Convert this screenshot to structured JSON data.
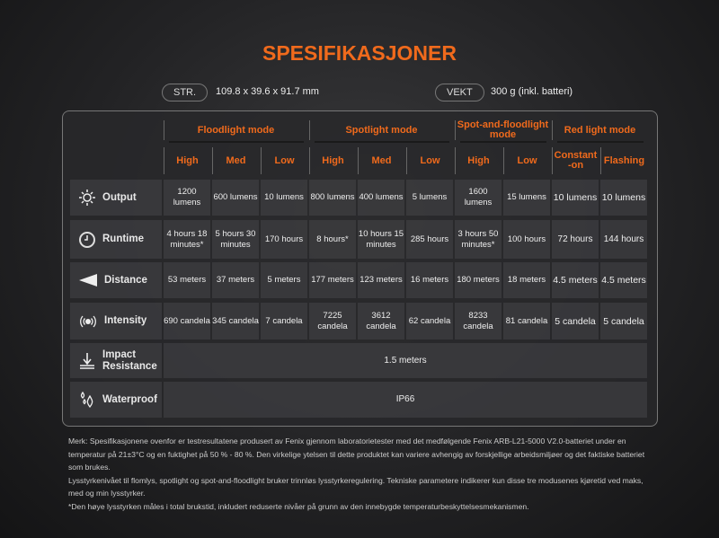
{
  "title": "SPESIFIKASJONER",
  "size": {
    "label": "STR.",
    "value": "109.8 x 39.6 x 91.7 mm"
  },
  "weight": {
    "label": "VEKT",
    "value": "300 g (inkl. batteri)"
  },
  "modes": [
    {
      "label": "Floodlight mode",
      "span": 3
    },
    {
      "label": "Spotlight mode",
      "span": 3
    },
    {
      "label": "Spot-and-floodlight mode",
      "span": 2
    },
    {
      "label": "Red light mode",
      "span": 2
    }
  ],
  "levels": [
    "High",
    "Med",
    "Low",
    "High",
    "Med",
    "Low",
    "High",
    "Low",
    "Constant -on",
    "Flashing"
  ],
  "rows": [
    {
      "label": "Output",
      "icon": "sun-icon",
      "values": [
        "1200 lumens",
        "600 lumens",
        "10 lumens",
        "800 lumens",
        "400 lumens",
        "5 lumens",
        "1600 lumens",
        "15 lumens",
        "10 lumens",
        "10 lumens"
      ]
    },
    {
      "label": "Runtime",
      "icon": "clock-icon",
      "values": [
        "4 hours 18 minutes*",
        "5 hours 30 minutes",
        "170 hours",
        "8 hours*",
        "10 hours 15 minutes",
        "285 hours",
        "3 hours 50 minutes*",
        "100 hours",
        "72 hours",
        "144 hours"
      ]
    },
    {
      "label": "Distance",
      "icon": "beam-icon",
      "values": [
        "53 meters",
        "37 meters",
        "5 meters",
        "177 meters",
        "123 meters",
        "16 meters",
        "180 meters",
        "18 meters",
        "4.5 meters",
        "4.5 meters"
      ]
    },
    {
      "label": "Intensity",
      "icon": "intensity-icon",
      "values": [
        "690 candela",
        "345 candela",
        "7 candela",
        "7225 candela",
        "3612 candela",
        "62 candela",
        "8233 candela",
        "81 candela",
        "5 candela",
        "5 candela"
      ]
    },
    {
      "label": "Impact Resistance",
      "icon": "impact-icon",
      "value": "1.5 meters"
    },
    {
      "label": "Waterproof",
      "icon": "water-drops-icon",
      "value": "IP66"
    }
  ],
  "notes": [
    "Merk: Spesifikasjonene ovenfor er testresultatene produsert av Fenix gjennom laboratorietester med det medfølgende Fenix ARB-L21-5000 V2.0-batteriet under en temperatur på 21±3°C og en fuktighet på 50 % - 80 %. Den virkelige ytelsen til dette produktet kan variere avhengig av forskjellige arbeidsmiljøer og det faktiske batteriet som brukes.",
    "Lysstyrkenivået til flomlys, spotlight og spot-and-floodlight bruker trinnløs lysstyrkeregulering. Tekniske parametere indikerer kun disse tre modusenes kjøretid ved maks, med og min lysstyrker.",
    "*Den høye lysstyrken måles i total brukstid, inkludert reduserte nivåer på grunn av den innebygde temperaturbeskyttelsesmekanismen."
  ],
  "colors": {
    "accent": "#f06a1c"
  }
}
